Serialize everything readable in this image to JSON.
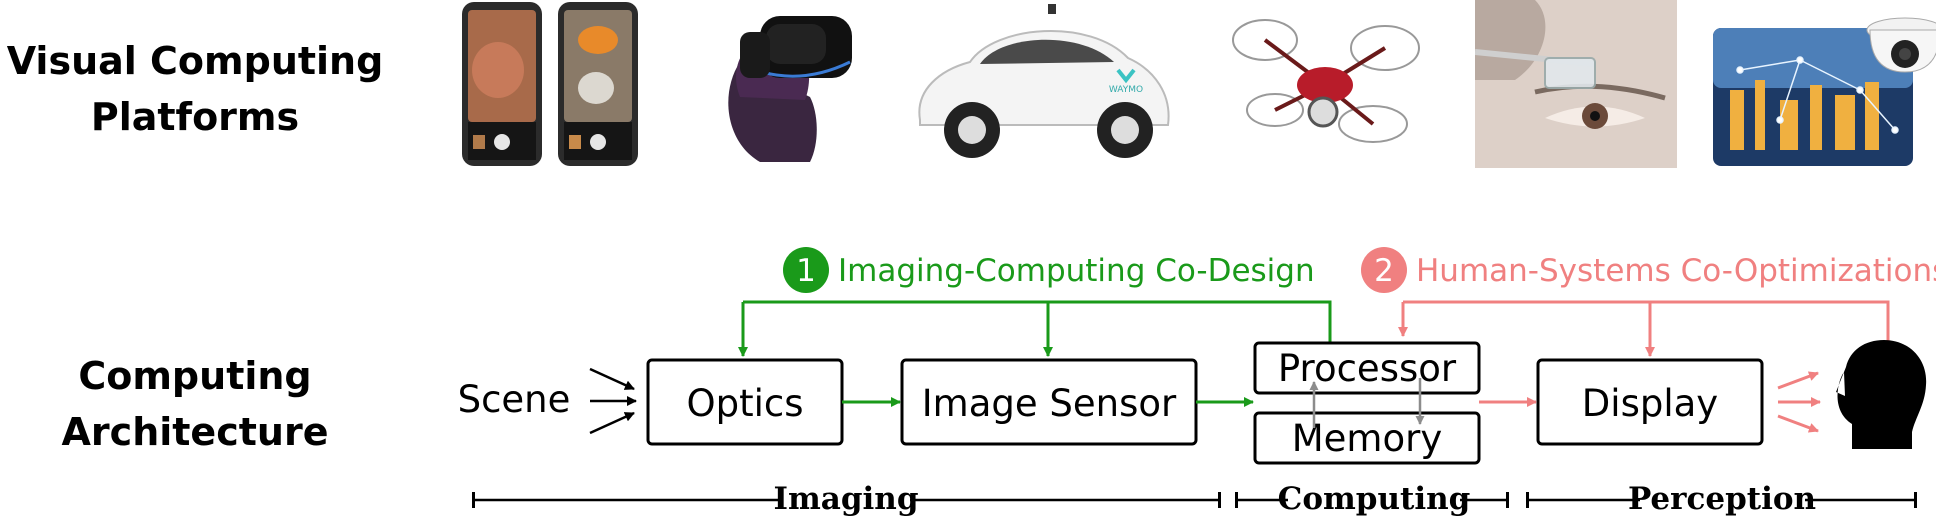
{
  "row_labels": {
    "platforms": [
      "Visual Computing",
      "Platforms"
    ],
    "architecture": [
      "Computing",
      "Architecture"
    ]
  },
  "platform_images": [
    {
      "name": "smartphone-camera-app-icon"
    },
    {
      "name": "vr-headset-icon"
    },
    {
      "name": "self-driving-car-icon"
    },
    {
      "name": "drone-icon"
    },
    {
      "name": "smart-glasses-icon"
    },
    {
      "name": "smart-city-security-camera-icon"
    }
  ],
  "car_brand": "WAYMO",
  "colors": {
    "green": "#1a9a1a",
    "pink": "#f08080",
    "gray": "#8c8c8c",
    "black": "#000000"
  },
  "diagram": {
    "scene": "Scene",
    "optics": "Optics",
    "image_sensor": "Image Sensor",
    "processor": "Processor",
    "memory": "Memory",
    "display": "Display",
    "codesign": {
      "number": "1",
      "label": "Imaging-Computing Co-Design"
    },
    "coopt": {
      "number": "2",
      "label": "Human-Systems Co-Optimizations"
    },
    "spans": {
      "imaging": "Imaging",
      "computing": "Computing",
      "perception": "Perception"
    }
  }
}
